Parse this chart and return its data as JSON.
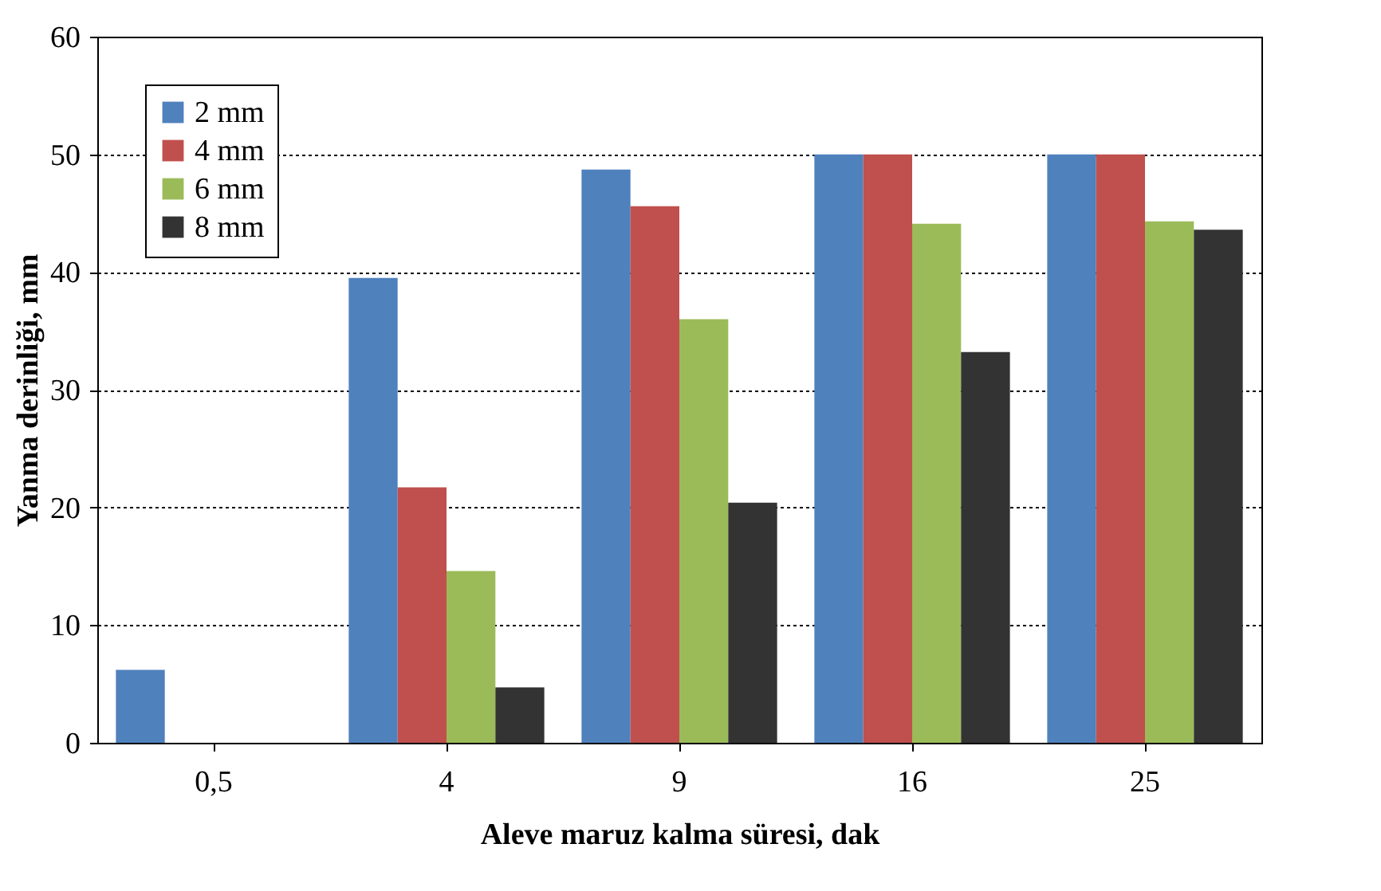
{
  "chart_data": {
    "type": "bar",
    "xlabel": "Aleve maruz kalma süresi, dak",
    "ylabel": "Yanma derinliği, mm",
    "categories": [
      "0,5",
      "4",
      "9",
      "16",
      "25"
    ],
    "series": [
      {
        "name": "2 mm",
        "color": "#4f81bd",
        "values": [
          6.2,
          39.5,
          48.7,
          50,
          50
        ]
      },
      {
        "name": "4 mm",
        "color": "#c0504d",
        "values": [
          0,
          21.7,
          45.6,
          50,
          50
        ]
      },
      {
        "name": "6 mm",
        "color": "#9bbb59",
        "values": [
          0,
          14.6,
          36,
          44.1,
          44.3
        ]
      },
      {
        "name": "8 mm",
        "color": "#333333",
        "values": [
          0,
          4.7,
          20.4,
          33.2,
          43.6
        ]
      }
    ],
    "ylim": [
      0,
      60
    ],
    "yticks": [
      0,
      10,
      20,
      30,
      40,
      50,
      60
    ],
    "grid": "y",
    "legend": "top left"
  }
}
